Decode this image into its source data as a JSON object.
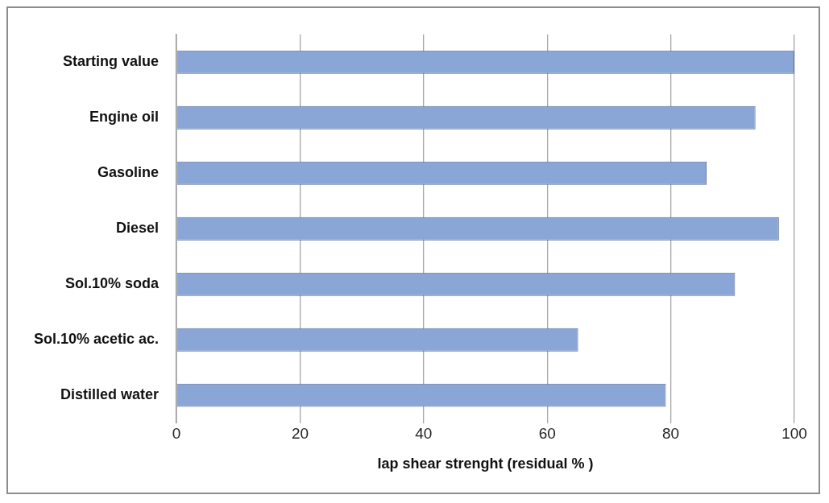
{
  "chart_data": {
    "type": "bar",
    "orientation": "horizontal",
    "xlabel": "lap shear strenght (residual % )",
    "categories": [
      "Starting value",
      "Engine oil",
      "Gasoline",
      "Diesel",
      "Sol.10% soda",
      "Sol.10% acetic ac.",
      "Distilled water"
    ],
    "values": [
      100,
      93.7,
      85.8,
      97.5,
      90.4,
      65,
      79.2
    ],
    "color": "#8aa6d6",
    "xlim": [
      0,
      100
    ],
    "xticks": [
      0,
      20,
      40,
      60,
      80,
      100
    ],
    "grid": "x",
    "legend": false
  }
}
